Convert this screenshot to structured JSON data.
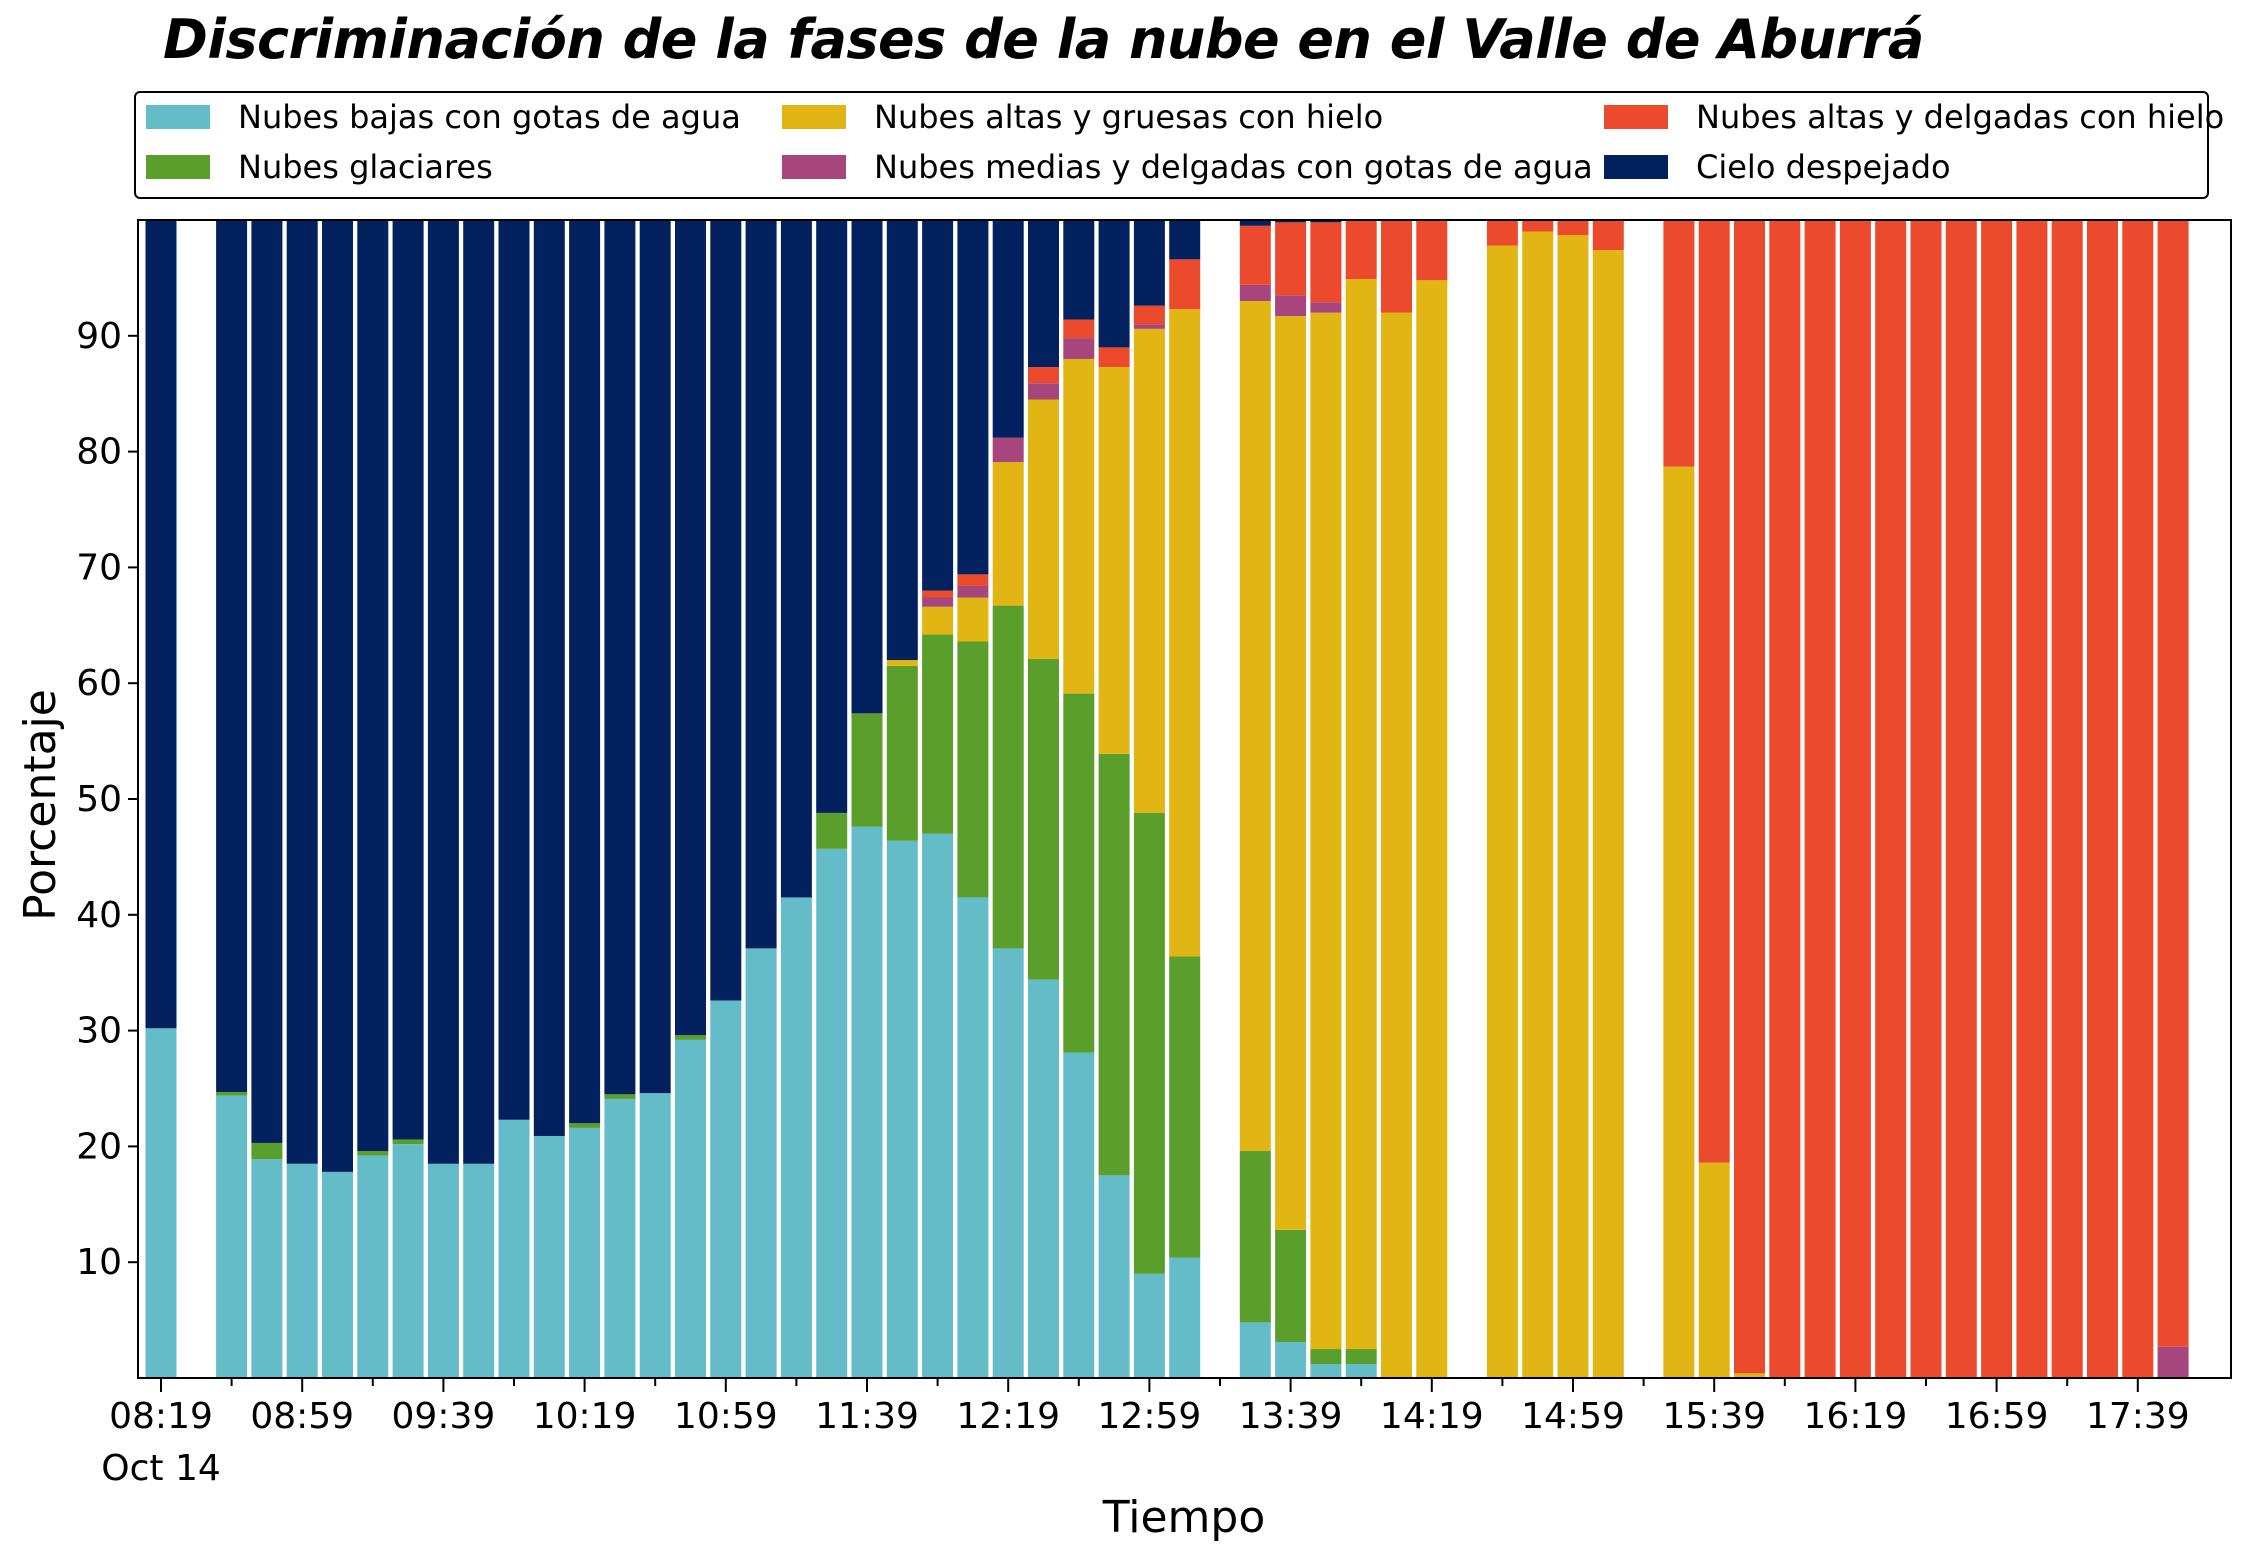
{
  "title": "Discriminación de la fases de la nube en el Valle de Aburrá",
  "chart_data": {
    "type": "bar",
    "stacked": true,
    "xlabel": "Tiempo",
    "ylabel": "Porcentaje",
    "ylim": [
      0,
      100
    ],
    "yticks": [
      10,
      20,
      30,
      40,
      50,
      60,
      70,
      80,
      90
    ],
    "x_tick_labels": [
      "08:19",
      "08:59",
      "09:39",
      "10:19",
      "10:59",
      "11:39",
      "12:19",
      "12:59",
      "13:39",
      "14:19",
      "14:59",
      "15:39",
      "16:19",
      "16:59",
      "17:39"
    ],
    "x_date_label": "Oct 14",
    "interval_minutes": 10,
    "legend_location": "top, above plot (3 columns)",
    "grid": false,
    "categories": [
      "08:19",
      "08:29",
      "08:39",
      "08:49",
      "08:59",
      "09:09",
      "09:19",
      "09:29",
      "09:39",
      "09:49",
      "09:59",
      "10:09",
      "10:19",
      "10:29",
      "10:39",
      "10:49",
      "10:59",
      "11:09",
      "11:19",
      "11:29",
      "11:39",
      "11:49",
      "11:59",
      "12:09",
      "12:19",
      "12:29",
      "12:39",
      "12:49",
      "12:59",
      "13:09",
      "13:19",
      "13:29",
      "13:39",
      "13:49",
      "13:59",
      "14:09",
      "14:19",
      "14:29",
      "14:39",
      "14:49",
      "14:59",
      "15:09",
      "15:19",
      "15:29",
      "15:39",
      "15:49",
      "15:59",
      "16:09",
      "16:19",
      "16:29",
      "16:39",
      "16:49",
      "16:59",
      "17:09",
      "17:19",
      "17:29",
      "17:39",
      "17:49"
    ],
    "series": [
      {
        "name": "Nubes bajas con gotas de agua",
        "color": "#64bcc8",
        "values": [
          30.2,
          null,
          24.4,
          18.9,
          18.5,
          17.8,
          19.2,
          20.2,
          18.5,
          18.5,
          22.3,
          20.9,
          21.6,
          24.1,
          24.6,
          29.2,
          32.6,
          37.1,
          41.5,
          45.7,
          47.6,
          46.4,
          47.0,
          41.5,
          37.1,
          34.4,
          28.1,
          17.5,
          9.0,
          10.4,
          null,
          4.8,
          3.1,
          1.2,
          1.2,
          0,
          0,
          null,
          0,
          0,
          0,
          0,
          null,
          0,
          0,
          0,
          0,
          0,
          0,
          0,
          0,
          0,
          0,
          0,
          0,
          0,
          0,
          0
        ]
      },
      {
        "name": "Nubes glaciares",
        "color": "#5a9e2c",
        "values": [
          0,
          null,
          0.3,
          1.4,
          0,
          0,
          0.4,
          0.4,
          0,
          0,
          0,
          0,
          0.4,
          0.4,
          0,
          0.4,
          0,
          0,
          0,
          3.1,
          9.8,
          15.1,
          17.2,
          22.1,
          29.6,
          27.7,
          31.0,
          36.4,
          39.8,
          26.0,
          null,
          14.8,
          9.7,
          1.3,
          1.3,
          0,
          0,
          null,
          0,
          0,
          0,
          0,
          null,
          0,
          0,
          0,
          0,
          0,
          0,
          0,
          0,
          0,
          0,
          0,
          0,
          0,
          0,
          0
        ]
      },
      {
        "name": "Nubes altas y gruesas con hielo",
        "color": "#e1b513",
        "values": [
          0,
          null,
          0,
          0,
          0,
          0,
          0,
          0,
          0,
          0,
          0,
          0,
          0,
          0,
          0,
          0,
          0,
          0,
          0,
          0,
          0,
          0.5,
          2.4,
          3.8,
          12.4,
          22.4,
          28.9,
          33.4,
          41.8,
          55.9,
          null,
          73.4,
          78.9,
          89.5,
          92.4,
          92.0,
          94.8,
          null,
          97.8,
          99.0,
          98.7,
          97.4,
          null,
          78.7,
          18.6,
          0.4,
          0,
          0,
          0,
          0,
          0,
          0,
          0,
          0,
          0,
          0,
          0,
          0
        ]
      },
      {
        "name": "Nubes medias y delgadas con gotas de agua",
        "color": "#a6467d",
        "values": [
          0,
          null,
          0,
          0,
          0,
          0,
          0,
          0,
          0,
          0,
          0,
          0,
          0,
          0,
          0,
          0,
          0,
          0,
          0,
          0,
          0,
          0,
          0.8,
          1.0,
          2.1,
          1.4,
          1.8,
          0,
          0.4,
          0,
          null,
          1.4,
          1.8,
          0.9,
          0,
          0,
          0,
          null,
          0,
          0,
          0,
          0,
          null,
          0,
          0,
          0,
          0,
          0,
          0,
          0,
          0,
          0,
          0,
          0,
          0,
          0,
          0,
          2.7
        ]
      },
      {
        "name": "Nubes altas y delgadas con hielo",
        "color": "#ec4a2c",
        "values": [
          0,
          null,
          0,
          0,
          0,
          0,
          0,
          0,
          0,
          0,
          0,
          0,
          0,
          0,
          0,
          0,
          0,
          0,
          0,
          0,
          0,
          0,
          0.6,
          1.0,
          0,
          1.4,
          1.6,
          1.7,
          1.6,
          4.3,
          null,
          5.1,
          6.3,
          6.9,
          5.2,
          8.0,
          5.2,
          null,
          2.2,
          1.0,
          1.3,
          2.6,
          null,
          21.3,
          81.4,
          99.6,
          100,
          100,
          100,
          100,
          100,
          100,
          100,
          100,
          100,
          100,
          100,
          97.3
        ]
      },
      {
        "name": "Cielo despejado",
        "color": "#03205f",
        "values": [
          69.8,
          null,
          75.3,
          79.7,
          81.5,
          82.2,
          80.4,
          79.4,
          81.5,
          81.5,
          77.7,
          79.1,
          78.0,
          75.5,
          75.4,
          70.4,
          67.4,
          62.9,
          58.5,
          51.2,
          42.6,
          38.0,
          32.0,
          30.6,
          18.8,
          12.7,
          8.6,
          11.0,
          7.4,
          3.4,
          null,
          0.5,
          0.2,
          0.2,
          0.1,
          0,
          0,
          null,
          0,
          0,
          0,
          0,
          null,
          0,
          0,
          0,
          0,
          0,
          0,
          0,
          0,
          0,
          0,
          0,
          0,
          0,
          0,
          0
        ]
      }
    ]
  }
}
